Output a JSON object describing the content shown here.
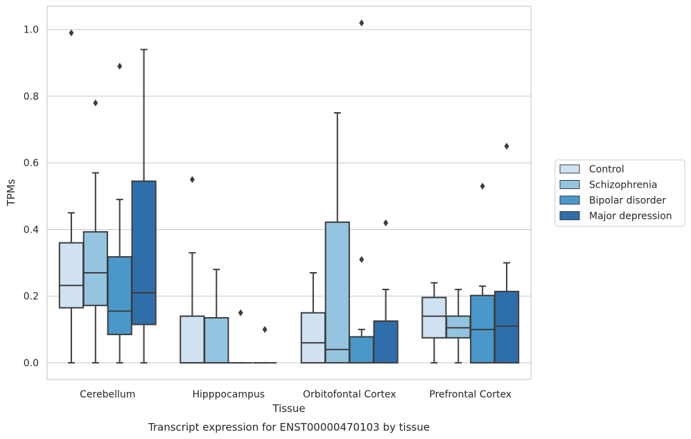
{
  "chart_data": {
    "type": "boxplot",
    "title": "Transcript expression for ENST00000470103 by tissue",
    "xlabel": "Tissue",
    "ylabel": "TPMs",
    "ylim": [
      -0.05,
      1.07
    ],
    "yticks": [
      0.0,
      0.2,
      0.4,
      0.6,
      0.8,
      1.0
    ],
    "ytick_labels": [
      "0.0",
      "0.2",
      "0.4",
      "0.6",
      "0.8",
      "1.0"
    ],
    "grid": true,
    "legend_position": "right",
    "categories": [
      "Cerebellum",
      "Hipppocampus",
      "Orbitofontal Cortex",
      "Prefrontal Cortex"
    ],
    "series": [
      {
        "name": "Control",
        "color": "#d0e1f2",
        "boxes": [
          {
            "whislo": 0.0,
            "q1": 0.165,
            "med": 0.232,
            "q3": 0.36,
            "whishi": 0.45,
            "fliers": [
              0.99
            ]
          },
          {
            "whislo": 0.0,
            "q1": 0.0,
            "med": 0.0,
            "q3": 0.14,
            "whishi": 0.33,
            "fliers": [
              0.55
            ]
          },
          {
            "whislo": 0.0,
            "q1": 0.0,
            "med": 0.06,
            "q3": 0.15,
            "whishi": 0.27,
            "fliers": []
          },
          {
            "whislo": 0.0,
            "q1": 0.075,
            "med": 0.14,
            "q3": 0.196,
            "whishi": 0.24,
            "fliers": []
          }
        ]
      },
      {
        "name": "Schizophrenia",
        "color": "#94c4df",
        "boxes": [
          {
            "whislo": 0.0,
            "q1": 0.172,
            "med": 0.27,
            "q3": 0.393,
            "whishi": 0.57,
            "fliers": [
              0.78
            ]
          },
          {
            "whislo": 0.0,
            "q1": 0.0,
            "med": 0.0,
            "q3": 0.135,
            "whishi": 0.28,
            "fliers": []
          },
          {
            "whislo": 0.0,
            "q1": 0.0,
            "med": 0.04,
            "q3": 0.422,
            "whishi": 0.75,
            "fliers": []
          },
          {
            "whislo": 0.0,
            "q1": 0.075,
            "med": 0.105,
            "q3": 0.14,
            "whishi": 0.22,
            "fliers": []
          }
        ]
      },
      {
        "name": "Bipolar disorder",
        "color": "#4a98c9",
        "boxes": [
          {
            "whislo": 0.0,
            "q1": 0.085,
            "med": 0.155,
            "q3": 0.318,
            "whishi": 0.49,
            "fliers": [
              0.89
            ]
          },
          {
            "whislo": 0.0,
            "q1": 0.0,
            "med": 0.0,
            "q3": 0.0,
            "whishi": 0.0,
            "fliers": [
              0.15
            ]
          },
          {
            "whislo": 0.0,
            "q1": 0.0,
            "med": 0.0,
            "q3": 0.078,
            "whishi": 0.1,
            "fliers": [
              0.31,
              1.02
            ]
          },
          {
            "whislo": 0.0,
            "q1": 0.0,
            "med": 0.1,
            "q3": 0.202,
            "whishi": 0.23,
            "fliers": [
              0.53
            ]
          }
        ]
      },
      {
        "name": "Major depression",
        "color": "#2e6fab",
        "boxes": [
          {
            "whislo": 0.0,
            "q1": 0.115,
            "med": 0.21,
            "q3": 0.545,
            "whishi": 0.94,
            "fliers": []
          },
          {
            "whislo": 0.0,
            "q1": 0.0,
            "med": 0.0,
            "q3": 0.0,
            "whishi": 0.0,
            "fliers": [
              0.1
            ]
          },
          {
            "whislo": 0.0,
            "q1": 0.0,
            "med": 0.125,
            "q3": 0.125,
            "whishi": 0.22,
            "fliers": [
              0.42
            ]
          },
          {
            "whislo": 0.0,
            "q1": 0.0,
            "med": 0.11,
            "q3": 0.214,
            "whishi": 0.3,
            "fliers": [
              0.65
            ]
          }
        ]
      }
    ]
  }
}
